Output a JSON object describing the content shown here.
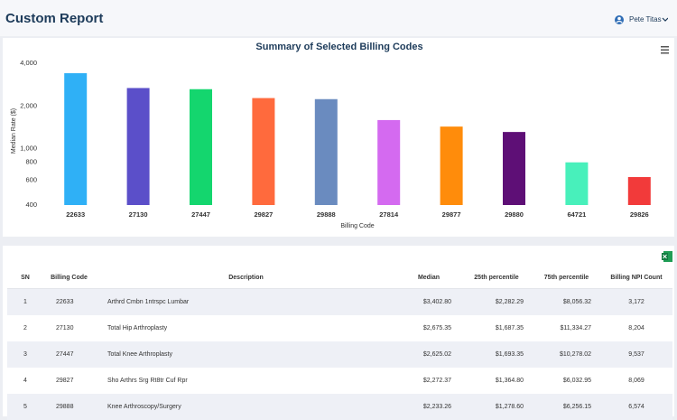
{
  "header": {
    "title": "Custom Report",
    "user": "Pete Titas"
  },
  "chart_data": {
    "type": "bar",
    "title": "Summary of Selected Billing Codes",
    "x_label": "Billing Code",
    "y_label": "Median Rate ($)",
    "categories": [
      "22633",
      "27130",
      "27447",
      "29827",
      "29888",
      "27814",
      "29877",
      "29880",
      "64721",
      "29826"
    ],
    "values": [
      3402.8,
      2675.35,
      2625.02,
      2272.37,
      2233.26,
      1590,
      1430,
      1310,
      800,
      630
    ],
    "colors": [
      "#2fb0f6",
      "#5b4fc9",
      "#14d66e",
      "#ff6a3d",
      "#6a8bbf",
      "#d46af0",
      "#ff8c0b",
      "#5e0f76",
      "#48f0bb",
      "#f23a3a"
    ],
    "log_scale": true,
    "ylim": [
      400,
      4500
    ],
    "yticks": [
      400,
      600,
      800,
      {
        "value": 1000,
        "label": "1,000"
      },
      {
        "value": 2000,
        "label": "2,000"
      },
      {
        "value": 4000,
        "label": "4,000"
      }
    ],
    "grid": false
  },
  "table": {
    "columns": [
      "SN",
      "Billing Code",
      "Description",
      "Median",
      "25th percentile",
      "75th percentile",
      "Billing NPI Count"
    ],
    "rows": [
      [
        "1",
        "22633",
        "Arthrd Cmbn 1ntrspc Lumbar",
        "$3,402.80",
        "$2,282.29",
        "$8,056.32",
        "3,172"
      ],
      [
        "2",
        "27130",
        "Total Hip Arthroplasty",
        "$2,675.35",
        "$1,687.35",
        "$11,334.27",
        "8,204"
      ],
      [
        "3",
        "27447",
        "Total Knee Arthroplasty",
        "$2,625.02",
        "$1,693.35",
        "$10,278.02",
        "9,537"
      ],
      [
        "4",
        "29827",
        "Sho Arthrs Srg Rt8tr Cuf Rpr",
        "$2,272.37",
        "$1,364.80",
        "$6,032.95",
        "8,069"
      ],
      [
        "5",
        "29888",
        "Knee Arthroscopy/Surgery",
        "$2,233.26",
        "$1,278.60",
        "$6,256.15",
        "6,574"
      ]
    ]
  }
}
